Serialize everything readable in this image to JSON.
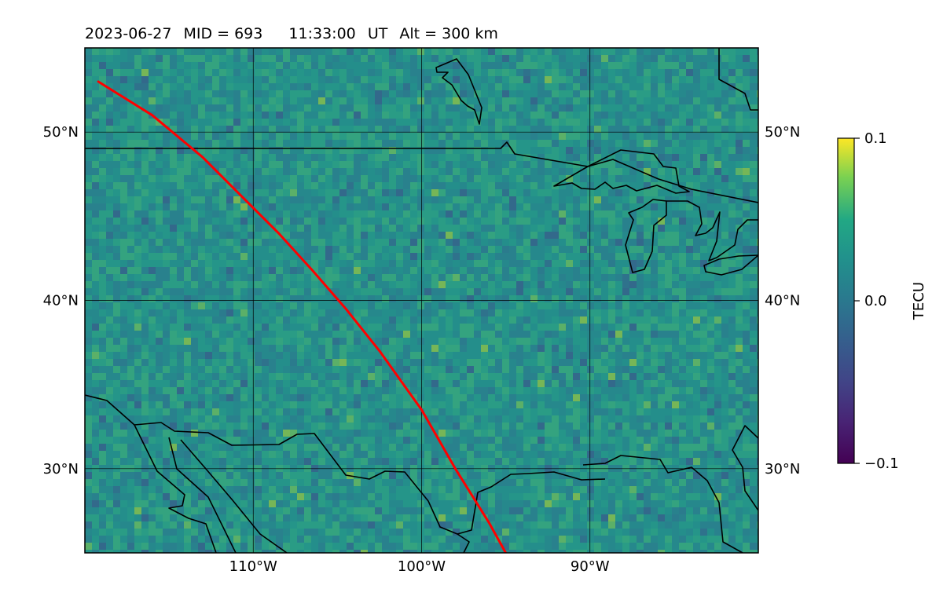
{
  "title": {
    "date": "2023-06-27",
    "mid": "MID = 693",
    "time": "11:33:00",
    "timezone": "UT",
    "altitude": "Alt = 300 km"
  },
  "map": {
    "lon_range": [
      -120,
      -80
    ],
    "lat_range": [
      25,
      55
    ],
    "lon_ticks": [
      {
        "value": -110,
        "label": "110°W"
      },
      {
        "value": -100,
        "label": "100°W"
      },
      {
        "value": -90,
        "label": "90°W"
      }
    ],
    "lat_ticks": [
      {
        "value": 50,
        "label": "50°N"
      },
      {
        "value": 40,
        "label": "40°N"
      },
      {
        "value": 30,
        "label": "30°N"
      }
    ],
    "gridlines": true,
    "colormap": "viridis",
    "track_color": "#ff0000",
    "track": [
      {
        "lon": -119.2,
        "lat": 53.0
      },
      {
        "lon": -116.0,
        "lat": 51.0
      },
      {
        "lon": -113.0,
        "lat": 48.5
      },
      {
        "lon": -110.5,
        "lat": 46.0
      },
      {
        "lon": -108.5,
        "lat": 44.0
      },
      {
        "lon": -106.5,
        "lat": 41.8
      },
      {
        "lon": -104.5,
        "lat": 39.5
      },
      {
        "lon": -102.5,
        "lat": 37.0
      },
      {
        "lon": -100.0,
        "lat": 33.5
      },
      {
        "lon": -98.0,
        "lat": 30.0
      },
      {
        "lon": -96.0,
        "lat": 26.8
      },
      {
        "lon": -95.0,
        "lat": 25.0
      }
    ]
  },
  "colorbar": {
    "label": "TECU",
    "ticks": [
      {
        "value": 0.1,
        "label": "0.1"
      },
      {
        "value": 0.0,
        "label": "0.0"
      },
      {
        "value": -0.1,
        "label": "−0.1"
      }
    ],
    "range": [
      -0.1,
      0.1
    ]
  }
}
